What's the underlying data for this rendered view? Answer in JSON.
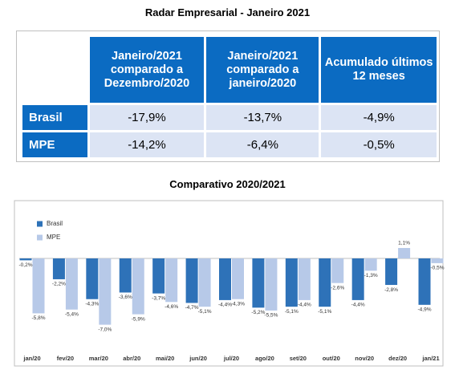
{
  "header": {
    "title": "Radar Empresarial - Janeiro 2021"
  },
  "table": {
    "columns": [
      "Janeiro/2021 comparado a Dezembro/2020",
      "Janeiro/2021 comparado a janeiro/2020",
      "Acumulado últimos 12 meses"
    ],
    "rows": [
      [
        "Brasil",
        "-17,9%",
        "-13,7%",
        "-4,9%"
      ],
      [
        "MPE",
        "-14,2%",
        "-6,4%",
        "-0,5%"
      ]
    ]
  },
  "chart_data": {
    "type": "bar",
    "title": "Comparativo 2020/2021",
    "categories": [
      "jan/20",
      "fev/20",
      "mar/20",
      "abr/20",
      "mai/20",
      "jun/20",
      "jul/20",
      "ago/20",
      "set/20",
      "out/20",
      "nov/20",
      "dez/20",
      "jan/21"
    ],
    "legend": "upper left",
    "series": [
      {
        "name": "Brasil",
        "color": "#2e72b8",
        "values": [
          -0.2,
          -2.2,
          -4.3,
          -3.6,
          -3.7,
          -4.7,
          -4.4,
          -5.2,
          -5.1,
          -5.1,
          -4.4,
          -2.8,
          -4.9
        ],
        "value_labels": [
          "-0,2%",
          "-2,2%",
          "-4,3%",
          "-3,6%",
          "-3,7%",
          "-4,7%",
          "-4,4%",
          "-5,2%",
          "-5,1%",
          "-5,1%",
          "-4,4%",
          "-2,8%",
          "-4,9%"
        ]
      },
      {
        "name": "MPE",
        "color": "#b7c9e8",
        "values": [
          -5.8,
          -5.4,
          -7.0,
          -5.9,
          -4.6,
          -5.1,
          -4.3,
          -5.5,
          -4.4,
          -2.6,
          -1.3,
          1.1,
          -0.5
        ],
        "value_labels": [
          "-5,8%",
          "-5,4%",
          "-7,0%",
          "-5,9%",
          "-4,6%",
          "-5,1%",
          "-4,3%",
          "-5,5%",
          "-4,4%",
          "-2,6%",
          "-1,3%",
          "1,1%",
          "-0,5%"
        ]
      }
    ]
  }
}
